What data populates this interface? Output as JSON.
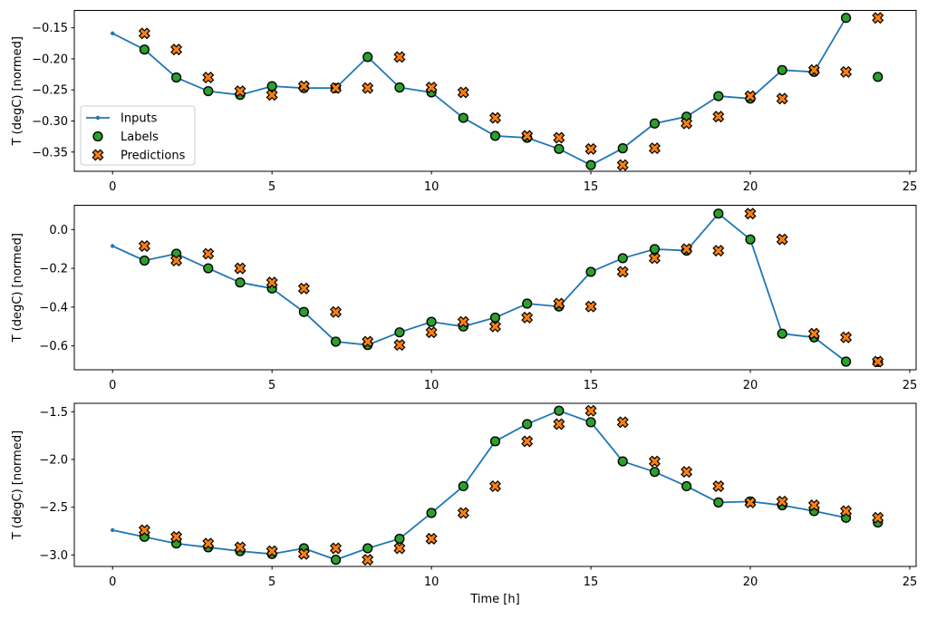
{
  "figure": {
    "background": "#ffffff",
    "xlabel": "Time [h]",
    "ylabel": "T (degC) [normed]",
    "colors": {
      "inputs": "#1f77b4",
      "labels": "#2ca02c",
      "predictions": "#ff7f0e",
      "marker_edge": "#000000",
      "spine": "#000000",
      "legend_border": "#cccccc",
      "legend_background": "#ffffff"
    },
    "legend": {
      "items": [
        "Inputs",
        "Labels",
        "Predictions"
      ],
      "position": "left-center-of-first-subplot"
    }
  },
  "chart_data": [
    {
      "type": "line",
      "title": "",
      "xlabel": "",
      "ylabel": "T (degC) [normed]",
      "xlim": [
        -1.2,
        25.2
      ],
      "ylim": [
        -0.381,
        -0.122
      ],
      "grid": false,
      "legend": true,
      "xticks": [
        0,
        5,
        10,
        15,
        20,
        25
      ],
      "xtick_labels": [
        "0",
        "5",
        "10",
        "15",
        "20",
        "25"
      ],
      "yticks": [
        -0.15,
        -0.2,
        -0.25,
        -0.3,
        -0.35
      ],
      "ytick_labels": [
        "−0.15",
        "−0.20",
        "−0.25",
        "−0.30",
        "−0.35"
      ],
      "series": [
        {
          "name": "Inputs",
          "kind": "line",
          "marker": "dot",
          "color": "#1f77b4",
          "x": [
            0,
            1,
            2,
            3,
            4,
            5,
            6,
            7,
            8,
            9,
            10,
            11,
            12,
            13,
            14,
            15,
            16,
            17,
            18,
            19,
            20,
            21,
            22,
            23
          ],
          "y": [
            -0.159,
            -0.185,
            -0.23,
            -0.252,
            -0.258,
            -0.244,
            -0.247,
            -0.247,
            -0.197,
            -0.246,
            -0.254,
            -0.295,
            -0.324,
            -0.327,
            -0.345,
            -0.371,
            -0.344,
            -0.304,
            -0.293,
            -0.26,
            -0.264,
            -0.218,
            -0.221,
            -0.134
          ]
        },
        {
          "name": "Labels",
          "kind": "scatter",
          "marker": "circle",
          "color": "#2ca02c",
          "edge": "#000000",
          "x": [
            1,
            2,
            3,
            4,
            5,
            6,
            7,
            8,
            9,
            10,
            11,
            12,
            13,
            14,
            15,
            16,
            17,
            18,
            19,
            20,
            21,
            22,
            23,
            24
          ],
          "y": [
            -0.185,
            -0.23,
            -0.252,
            -0.258,
            -0.244,
            -0.247,
            -0.247,
            -0.197,
            -0.246,
            -0.254,
            -0.295,
            -0.324,
            -0.327,
            -0.345,
            -0.371,
            -0.344,
            -0.304,
            -0.293,
            -0.26,
            -0.264,
            -0.218,
            -0.221,
            -0.134,
            -0.229
          ]
        },
        {
          "name": "Predictions",
          "kind": "scatter",
          "marker": "X",
          "color": "#ff7f0e",
          "edge": "#000000",
          "x": [
            1,
            2,
            3,
            4,
            5,
            6,
            7,
            8,
            9,
            10,
            11,
            12,
            13,
            14,
            15,
            16,
            17,
            18,
            19,
            20,
            21,
            22,
            23,
            24
          ],
          "y": [
            -0.159,
            -0.185,
            -0.23,
            -0.252,
            -0.258,
            -0.244,
            -0.247,
            -0.247,
            -0.197,
            -0.246,
            -0.254,
            -0.295,
            -0.324,
            -0.327,
            -0.345,
            -0.371,
            -0.344,
            -0.304,
            -0.293,
            -0.26,
            -0.264,
            -0.218,
            -0.221,
            -0.134
          ]
        }
      ]
    },
    {
      "type": "line",
      "title": "",
      "xlabel": "",
      "ylabel": "T (degC) [normed]",
      "xlim": [
        -1.2,
        25.2
      ],
      "ylim": [
        -0.723,
        0.125
      ],
      "grid": false,
      "legend": false,
      "xticks": [
        0,
        5,
        10,
        15,
        20,
        25
      ],
      "xtick_labels": [
        "0",
        "5",
        "10",
        "15",
        "20",
        "25"
      ],
      "yticks": [
        0.0,
        -0.2,
        -0.4,
        -0.6
      ],
      "ytick_labels": [
        "0.0",
        "−0.2",
        "−0.4",
        "−0.6"
      ],
      "series": [
        {
          "name": "Inputs",
          "kind": "line",
          "marker": "dot",
          "color": "#1f77b4",
          "x": [
            0,
            1,
            2,
            3,
            4,
            5,
            6,
            7,
            8,
            9,
            10,
            11,
            12,
            13,
            14,
            15,
            16,
            17,
            18,
            19,
            20,
            21,
            22,
            23
          ],
          "y": [
            -0.085,
            -0.16,
            -0.125,
            -0.2,
            -0.273,
            -0.304,
            -0.425,
            -0.578,
            -0.595,
            -0.53,
            -0.476,
            -0.5,
            -0.454,
            -0.382,
            -0.397,
            -0.218,
            -0.148,
            -0.101,
            -0.109,
            0.082,
            -0.051,
            -0.537,
            -0.556,
            -0.681
          ]
        },
        {
          "name": "Labels",
          "kind": "scatter",
          "marker": "circle",
          "color": "#2ca02c",
          "edge": "#000000",
          "x": [
            1,
            2,
            3,
            4,
            5,
            6,
            7,
            8,
            9,
            10,
            11,
            12,
            13,
            14,
            15,
            16,
            17,
            18,
            19,
            20,
            21,
            22,
            23,
            24
          ],
          "y": [
            -0.16,
            -0.125,
            -0.2,
            -0.273,
            -0.304,
            -0.425,
            -0.578,
            -0.595,
            -0.53,
            -0.476,
            -0.5,
            -0.454,
            -0.382,
            -0.397,
            -0.218,
            -0.148,
            -0.101,
            -0.109,
            0.082,
            -0.051,
            -0.537,
            -0.556,
            -0.681,
            -0.683
          ]
        },
        {
          "name": "Predictions",
          "kind": "scatter",
          "marker": "X",
          "color": "#ff7f0e",
          "edge": "#000000",
          "x": [
            1,
            2,
            3,
            4,
            5,
            6,
            7,
            8,
            9,
            10,
            11,
            12,
            13,
            14,
            15,
            16,
            17,
            18,
            19,
            20,
            21,
            22,
            23,
            24
          ],
          "y": [
            -0.085,
            -0.16,
            -0.125,
            -0.2,
            -0.273,
            -0.304,
            -0.425,
            -0.578,
            -0.595,
            -0.53,
            -0.476,
            -0.5,
            -0.454,
            -0.382,
            -0.397,
            -0.218,
            -0.148,
            -0.101,
            -0.109,
            0.082,
            -0.051,
            -0.537,
            -0.556,
            -0.681
          ]
        }
      ]
    },
    {
      "type": "line",
      "title": "",
      "xlabel": "Time [h]",
      "ylabel": "T (degC) [normed]",
      "xlim": [
        -1.2,
        25.2
      ],
      "ylim": [
        -3.12,
        -1.412
      ],
      "grid": false,
      "legend": false,
      "xticks": [
        0,
        5,
        10,
        15,
        20,
        25
      ],
      "xtick_labels": [
        "0",
        "5",
        "10",
        "15",
        "20",
        "25"
      ],
      "yticks": [
        -1.5,
        -2.0,
        -2.5,
        -3.0
      ],
      "ytick_labels": [
        "−1.5",
        "−2.0",
        "−2.5",
        "−3.0"
      ],
      "series": [
        {
          "name": "Inputs",
          "kind": "line",
          "marker": "dot",
          "color": "#1f77b4",
          "x": [
            0,
            1,
            2,
            3,
            4,
            5,
            6,
            7,
            8,
            9,
            10,
            11,
            12,
            13,
            14,
            15,
            16,
            17,
            18,
            19,
            20,
            21,
            22,
            23
          ],
          "y": [
            -2.74,
            -2.81,
            -2.88,
            -2.92,
            -2.96,
            -2.99,
            -2.93,
            -3.05,
            -2.93,
            -2.83,
            -2.56,
            -2.28,
            -1.81,
            -1.63,
            -1.49,
            -1.61,
            -2.02,
            -2.13,
            -2.28,
            -2.45,
            -2.44,
            -2.48,
            -2.54,
            -2.61
          ]
        },
        {
          "name": "Labels",
          "kind": "scatter",
          "marker": "circle",
          "color": "#2ca02c",
          "edge": "#000000",
          "x": [
            1,
            2,
            3,
            4,
            5,
            6,
            7,
            8,
            9,
            10,
            11,
            12,
            13,
            14,
            15,
            16,
            17,
            18,
            19,
            20,
            21,
            22,
            23,
            24
          ],
          "y": [
            -2.81,
            -2.88,
            -2.92,
            -2.96,
            -2.99,
            -2.93,
            -3.05,
            -2.93,
            -2.83,
            -2.56,
            -2.28,
            -1.81,
            -1.63,
            -1.49,
            -1.61,
            -2.02,
            -2.13,
            -2.28,
            -2.45,
            -2.44,
            -2.48,
            -2.54,
            -2.61,
            -2.66
          ]
        },
        {
          "name": "Predictions",
          "kind": "scatter",
          "marker": "X",
          "color": "#ff7f0e",
          "edge": "#000000",
          "x": [
            1,
            2,
            3,
            4,
            5,
            6,
            7,
            8,
            9,
            10,
            11,
            12,
            13,
            14,
            15,
            16,
            17,
            18,
            19,
            20,
            21,
            22,
            23,
            24
          ],
          "y": [
            -2.74,
            -2.81,
            -2.88,
            -2.92,
            -2.96,
            -2.99,
            -2.93,
            -3.05,
            -2.93,
            -2.83,
            -2.56,
            -2.28,
            -1.81,
            -1.63,
            -1.49,
            -1.61,
            -2.02,
            -2.13,
            -2.28,
            -2.45,
            -2.44,
            -2.48,
            -2.54,
            -2.61
          ]
        }
      ]
    }
  ]
}
